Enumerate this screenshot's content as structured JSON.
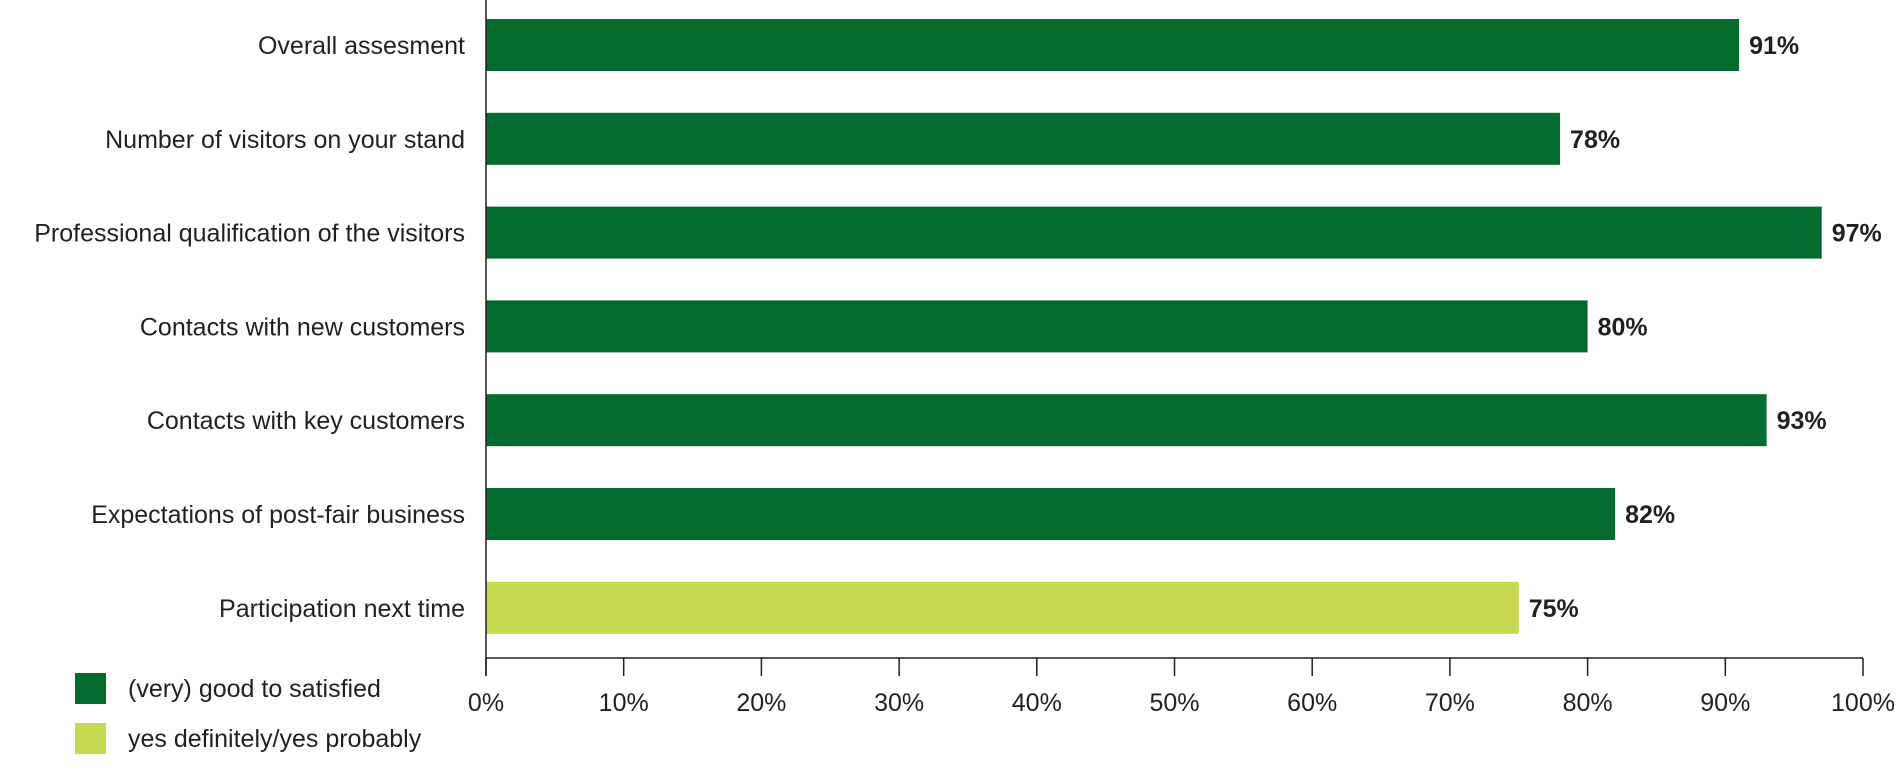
{
  "chart_data": {
    "type": "bar",
    "orientation": "horizontal",
    "title": "",
    "xlabel": "",
    "ylabel": "",
    "categories": [
      "Overall assesment",
      "Number of visitors on your stand",
      "Professional qualification of the visitors",
      "Contacts with new customers",
      "Contacts with key customers",
      "Expectations of post-fair business",
      "Participation next time"
    ],
    "values": [
      91,
      78,
      97,
      80,
      93,
      82,
      75
    ],
    "value_labels": [
      "91%",
      "78%",
      "97%",
      "80%",
      "93%",
      "82%",
      "75%"
    ],
    "bar_series": [
      0,
      0,
      0,
      0,
      0,
      0,
      1
    ],
    "series": [
      {
        "name": "(very) good to satisfied",
        "color": "#036b2e"
      },
      {
        "name": "yes definitely/yes probably",
        "color": "#c6d750"
      }
    ],
    "xlim": [
      0,
      100
    ],
    "xticks": [
      0,
      10,
      20,
      30,
      40,
      50,
      60,
      70,
      80,
      90,
      100
    ],
    "xtick_labels": [
      "0%",
      "10%",
      "20%",
      "30%",
      "40%",
      "50%",
      "60%",
      "70%",
      "80%",
      "90%",
      "100%"
    ],
    "grid": false,
    "legend_position": "bottom-left"
  }
}
